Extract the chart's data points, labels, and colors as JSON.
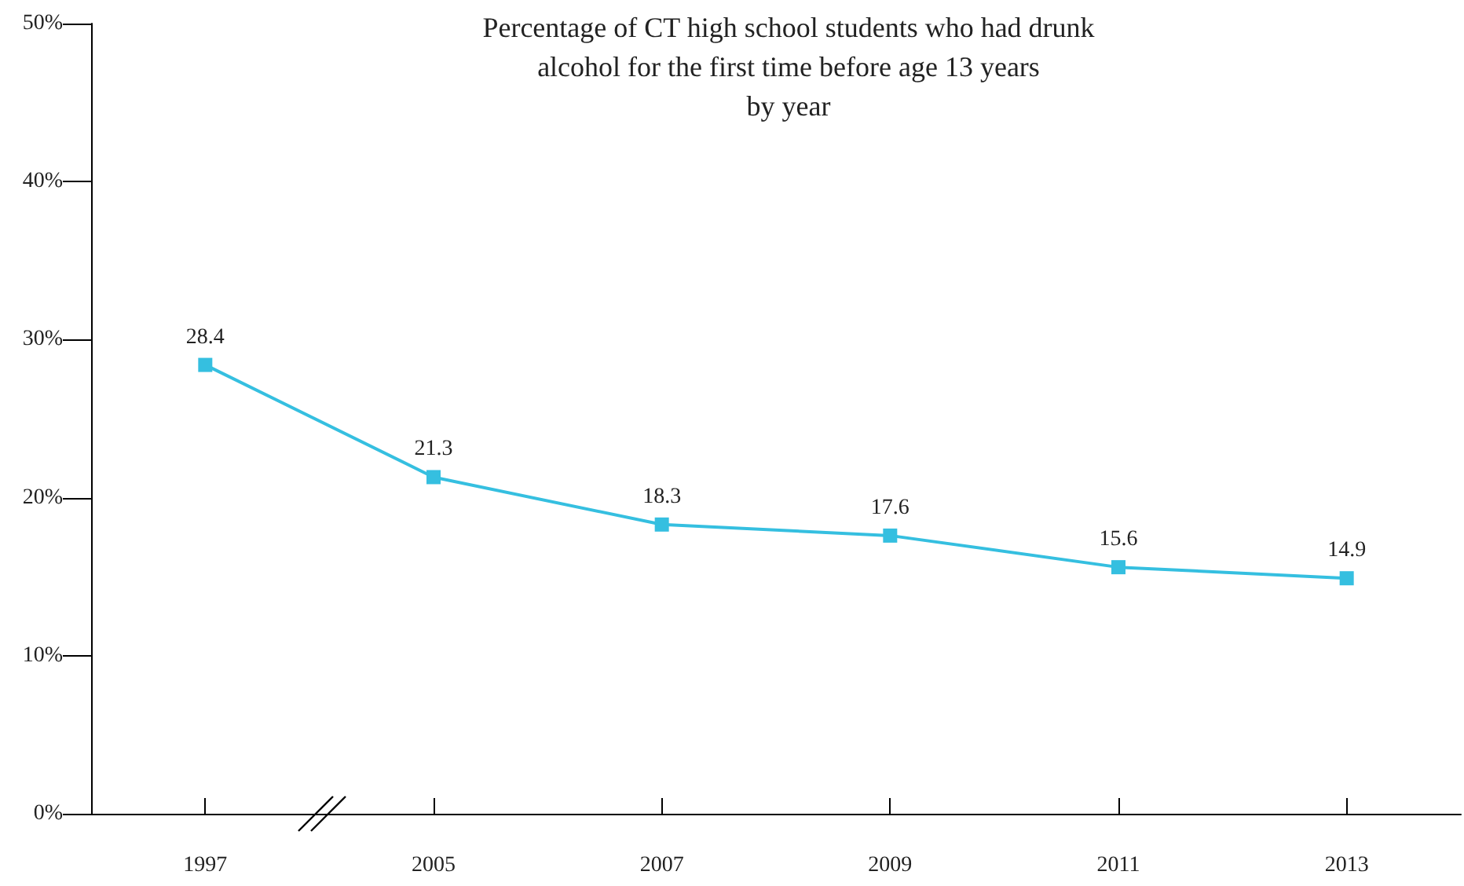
{
  "chart_data": {
    "type": "line",
    "title": "Percentage of CT high school students who had drunk\nalcohol for the first time before age 13 years\nby year",
    "categories": [
      "1997",
      "2005",
      "2007",
      "2009",
      "2011",
      "2013"
    ],
    "series": [
      {
        "color": "#35bfe0",
        "values": [
          28.4,
          21.3,
          18.3,
          17.6,
          15.6,
          14.9
        ]
      }
    ],
    "ylim": [
      0,
      50
    ],
    "yticks": [
      {
        "value": 0,
        "label": "0%"
      },
      {
        "value": 10,
        "label": "10%"
      },
      {
        "value": 20,
        "label": "20%"
      },
      {
        "value": 30,
        "label": "30%"
      },
      {
        "value": 40,
        "label": "40%"
      },
      {
        "value": 50,
        "label": "50%"
      }
    ],
    "data_labels": true,
    "grid": false,
    "marker": "square",
    "line_style": "solid"
  }
}
